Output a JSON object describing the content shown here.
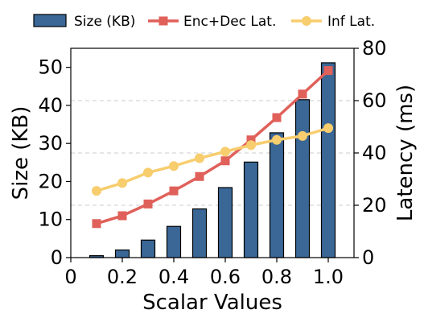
{
  "chart_data": {
    "type": "bar+line",
    "x": [
      0.1,
      0.2,
      0.3,
      0.4,
      0.5,
      0.6,
      0.7,
      0.8,
      0.9,
      1.0
    ],
    "xlabel": "Scalar Values",
    "ylabel_left": "Size (KB)",
    "ylabel_right": "Latency (ms)",
    "xlim": [
      0,
      1.1
    ],
    "ylim_left": [
      0,
      55
    ],
    "ylim_right": [
      0,
      80
    ],
    "x_ticks": [
      0,
      0.2,
      0.4,
      0.6,
      0.8,
      1.0
    ],
    "x_tick_labels": [
      "0",
      "0.2",
      "0.4",
      "0.6",
      "0.8",
      "1.0"
    ],
    "y_ticks_left": [
      0,
      10,
      20,
      30,
      40,
      50
    ],
    "y_tick_labels_left": [
      "0",
      "10",
      "20",
      "30",
      "40",
      "50"
    ],
    "y_ticks_right": [
      0,
      20,
      40,
      60,
      80
    ],
    "y_tick_labels_right": [
      "0",
      "20",
      "40",
      "60",
      "80"
    ],
    "grid": "horizontal dashed",
    "legend_position": "top",
    "series": [
      {
        "name": "Size (KB)",
        "type": "bar",
        "axis": "left",
        "color": "#3a6796",
        "values": [
          0.5,
          2.0,
          4.6,
          8.2,
          12.8,
          18.4,
          25.1,
          32.8,
          41.5,
          51.2
        ]
      },
      {
        "name": "Enc+Dec Lat.",
        "type": "line",
        "marker": "square",
        "axis": "right",
        "color": "#e0605a",
        "values": [
          13,
          16,
          20.5,
          25.5,
          31,
          37,
          45,
          53.5,
          62.5,
          71.5
        ]
      },
      {
        "name": "Inf Lat.",
        "type": "line",
        "marker": "circle",
        "axis": "right",
        "color": "#f7cd6e",
        "values": [
          25.5,
          28.5,
          32.5,
          35,
          38,
          40.5,
          43,
          45,
          46.5,
          49.5
        ]
      }
    ]
  }
}
